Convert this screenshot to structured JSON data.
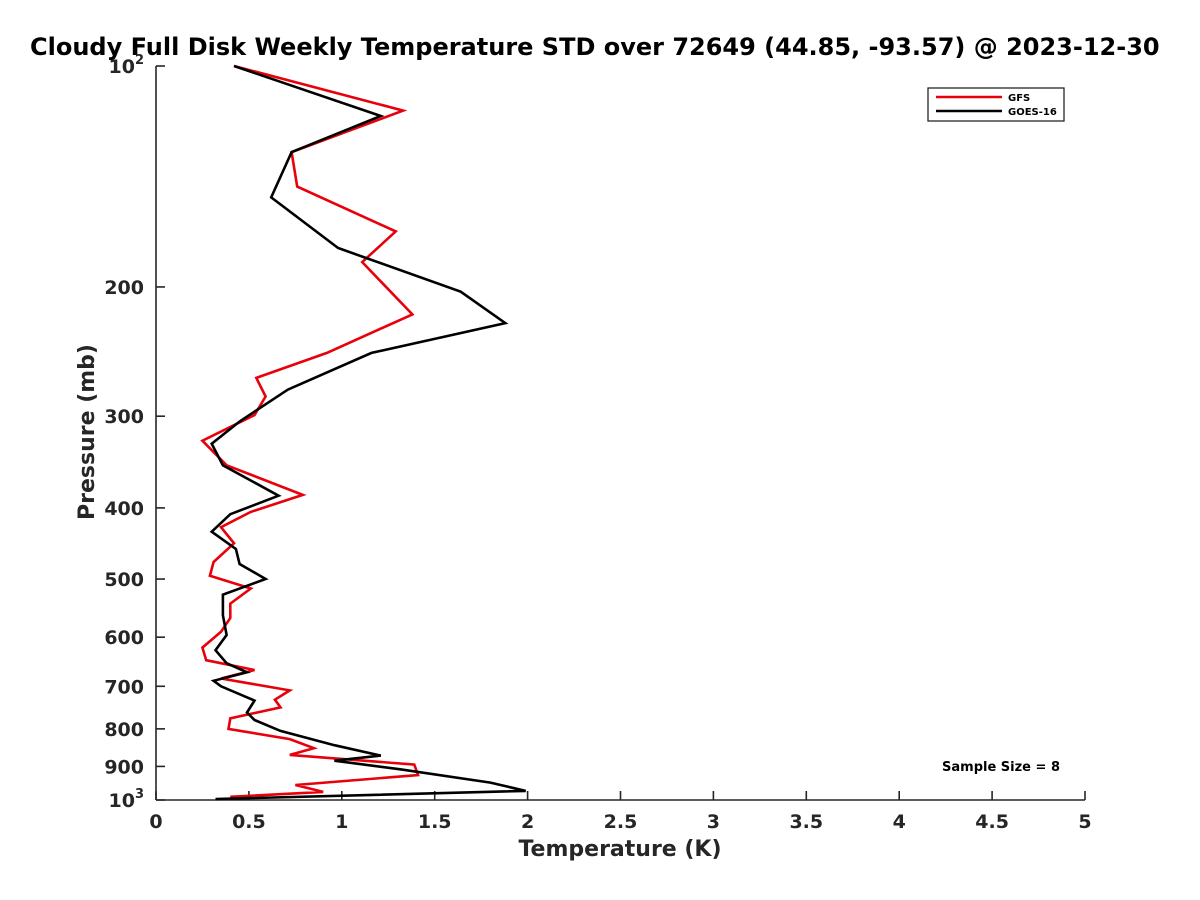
{
  "chart_data": {
    "type": "line",
    "title": "Cloudy Full Disk Weekly Temperature STD over 72649 (44.85, -93.57) @ 2023-12-30",
    "xlabel": "Temperature (K)",
    "ylabel": "Pressure (mb)",
    "xlim": [
      0,
      5
    ],
    "ylim": [
      1000,
      100
    ],
    "y_scale": "log",
    "x_ticks": [
      "0",
      "0.5",
      "1",
      "1.5",
      "2",
      "2.5",
      "3",
      "3.5",
      "4",
      "4.5",
      "5"
    ],
    "y_ticks": [
      {
        "value": 100,
        "base": "10",
        "exp": "2"
      },
      {
        "value": 200,
        "label": "200"
      },
      {
        "value": 300,
        "label": "300"
      },
      {
        "value": 400,
        "label": "400"
      },
      {
        "value": 500,
        "label": "500"
      },
      {
        "value": 600,
        "label": "600"
      },
      {
        "value": 700,
        "label": "700"
      },
      {
        "value": 800,
        "label": "800"
      },
      {
        "value": 900,
        "label": "900"
      },
      {
        "value": 1000,
        "base": "10",
        "exp": "3"
      }
    ],
    "grid": false,
    "legend_position": "top-right",
    "annotation": "Sample Size = 8",
    "series": [
      {
        "name": "GFS",
        "color": "#e8000b",
        "points": [
          [
            0.42,
            100
          ],
          [
            1.33,
            115
          ],
          [
            0.73,
            131
          ],
          [
            0.76,
            146
          ],
          [
            1.29,
            168
          ],
          [
            1.11,
            185
          ],
          [
            1.38,
            218
          ],
          [
            0.92,
            246
          ],
          [
            0.54,
            266
          ],
          [
            0.59,
            282
          ],
          [
            0.53,
            299
          ],
          [
            0.25,
            324
          ],
          [
            0.38,
            350
          ],
          [
            0.79,
            384
          ],
          [
            0.51,
            405
          ],
          [
            0.35,
            425
          ],
          [
            0.42,
            447
          ],
          [
            0.31,
            474
          ],
          [
            0.29,
            495
          ],
          [
            0.51,
            515
          ],
          [
            0.4,
            540
          ],
          [
            0.4,
            565
          ],
          [
            0.35,
            590
          ],
          [
            0.25,
            620
          ],
          [
            0.27,
            645
          ],
          [
            0.53,
            665
          ],
          [
            0.35,
            683
          ],
          [
            0.72,
            709
          ],
          [
            0.64,
            730
          ],
          [
            0.67,
            748
          ],
          [
            0.4,
            774
          ],
          [
            0.39,
            800
          ],
          [
            0.72,
            826
          ],
          [
            0.85,
            850
          ],
          [
            0.72,
            868
          ],
          [
            1.39,
            895
          ],
          [
            1.41,
            925
          ],
          [
            0.75,
            954
          ],
          [
            0.9,
            975
          ],
          [
            0.4,
            990
          ]
        ]
      },
      {
        "name": "GOES-16",
        "color": "#000000",
        "points": [
          [
            0.42,
            100
          ],
          [
            1.21,
            117
          ],
          [
            0.73,
            131
          ],
          [
            0.62,
            151
          ],
          [
            0.98,
            177
          ],
          [
            1.64,
            203
          ],
          [
            1.88,
            224
          ],
          [
            1.16,
            246
          ],
          [
            0.71,
            276
          ],
          [
            0.45,
            305
          ],
          [
            0.3,
            327
          ],
          [
            0.36,
            350
          ],
          [
            0.66,
            385
          ],
          [
            0.4,
            408
          ],
          [
            0.3,
            431
          ],
          [
            0.43,
            455
          ],
          [
            0.45,
            477
          ],
          [
            0.59,
            500
          ],
          [
            0.36,
            525
          ],
          [
            0.36,
            560
          ],
          [
            0.38,
            596
          ],
          [
            0.32,
            625
          ],
          [
            0.38,
            651
          ],
          [
            0.49,
            670
          ],
          [
            0.31,
            688
          ],
          [
            0.35,
            700
          ],
          [
            0.53,
            732
          ],
          [
            0.49,
            760
          ],
          [
            0.53,
            778
          ],
          [
            0.67,
            805
          ],
          [
            0.96,
            842
          ],
          [
            1.21,
            870
          ],
          [
            0.96,
            884
          ],
          [
            1.31,
            908
          ],
          [
            1.8,
            947
          ],
          [
            1.99,
            972
          ],
          [
            0.32,
            997
          ]
        ]
      }
    ]
  }
}
